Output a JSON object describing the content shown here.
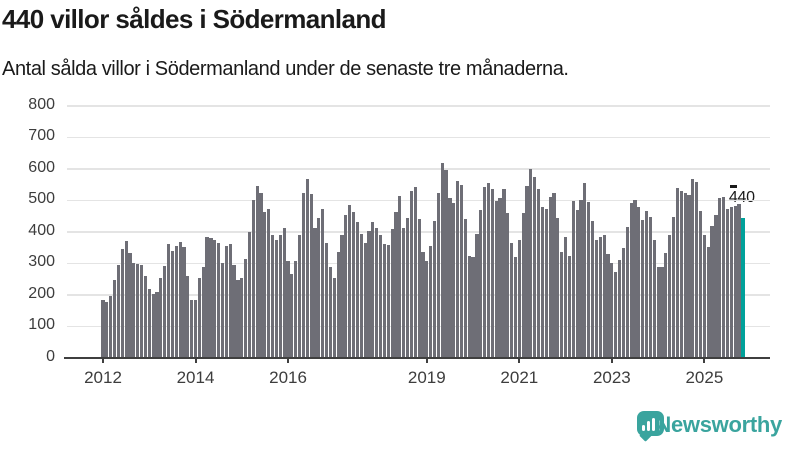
{
  "header": {
    "title": "440 villor såldes i Södermanland",
    "subtitle": "Antal sålda villor i Södermanland under de senaste tre månaderna."
  },
  "chart_data": {
    "type": "bar",
    "title": "440 villor såldes i Södermanland",
    "subtitle": "Antal sålda villor i Södermanland under de senaste tre månaderna.",
    "unit": "antal sålda villor (rullande tre månader)",
    "frequency": "monthly",
    "x_start": "2012-01",
    "x_end": "2025-11",
    "ylim": [
      0,
      800
    ],
    "y_ticks": [
      0,
      100,
      200,
      300,
      400,
      500,
      600,
      700,
      800
    ],
    "x_tick_labels": [
      "2012",
      "2014",
      "2016",
      "2019",
      "2021",
      "2023",
      "2025"
    ],
    "x_tick_indices": [
      0,
      24,
      48,
      84,
      108,
      132,
      156
    ],
    "grid": true,
    "values": [
      181,
      174,
      195,
      244,
      291,
      342,
      369,
      331,
      297,
      294,
      291,
      257,
      215,
      200,
      207,
      250,
      289,
      358,
      337,
      352,
      366,
      348,
      257,
      180,
      180,
      250,
      287,
      380,
      377,
      371,
      363,
      297,
      353,
      358,
      292,
      244,
      252,
      310,
      398,
      498,
      543,
      520,
      461,
      469,
      387,
      371,
      387,
      408,
      305,
      262,
      304,
      387,
      521,
      564,
      516,
      409,
      440,
      469,
      361,
      287,
      250,
      334,
      387,
      451,
      483,
      461,
      430,
      390,
      361,
      400,
      428,
      410,
      388,
      360,
      357,
      405,
      461,
      511,
      411,
      440,
      528,
      539,
      437,
      334,
      305,
      352,
      432,
      520,
      617,
      594,
      504,
      488,
      560,
      546,
      437,
      321,
      317,
      389,
      467,
      539,
      553,
      532,
      496,
      506,
      532,
      458,
      363,
      316,
      373,
      458,
      543,
      596,
      570,
      532,
      475,
      469,
      509,
      522,
      440,
      334,
      380,
      320,
      496,
      467,
      500,
      551,
      493,
      433,
      373,
      380,
      387,
      327,
      297,
      271,
      308,
      345,
      412,
      490,
      500,
      475,
      435,
      463,
      445,
      371,
      287,
      285,
      329,
      387,
      445,
      535,
      528,
      520,
      514,
      564,
      557,
      464,
      387,
      350,
      416,
      451,
      506,
      509,
      470,
      475,
      479,
      486,
      440
    ],
    "highlight": {
      "index": 166,
      "value": 440,
      "label": "440"
    },
    "colors": {
      "bar": "#6e6e76",
      "highlight": "#00a19a",
      "grid": "#e4e4e4",
      "axis": "#3f3f3f",
      "tick_text": "#3d3d3d",
      "text": "#1a1a1a"
    }
  },
  "footer": {
    "brand": "Newsworthy",
    "brand_color": "#3aa49e",
    "logo_icon": "bar-chart-speech-bubble"
  }
}
